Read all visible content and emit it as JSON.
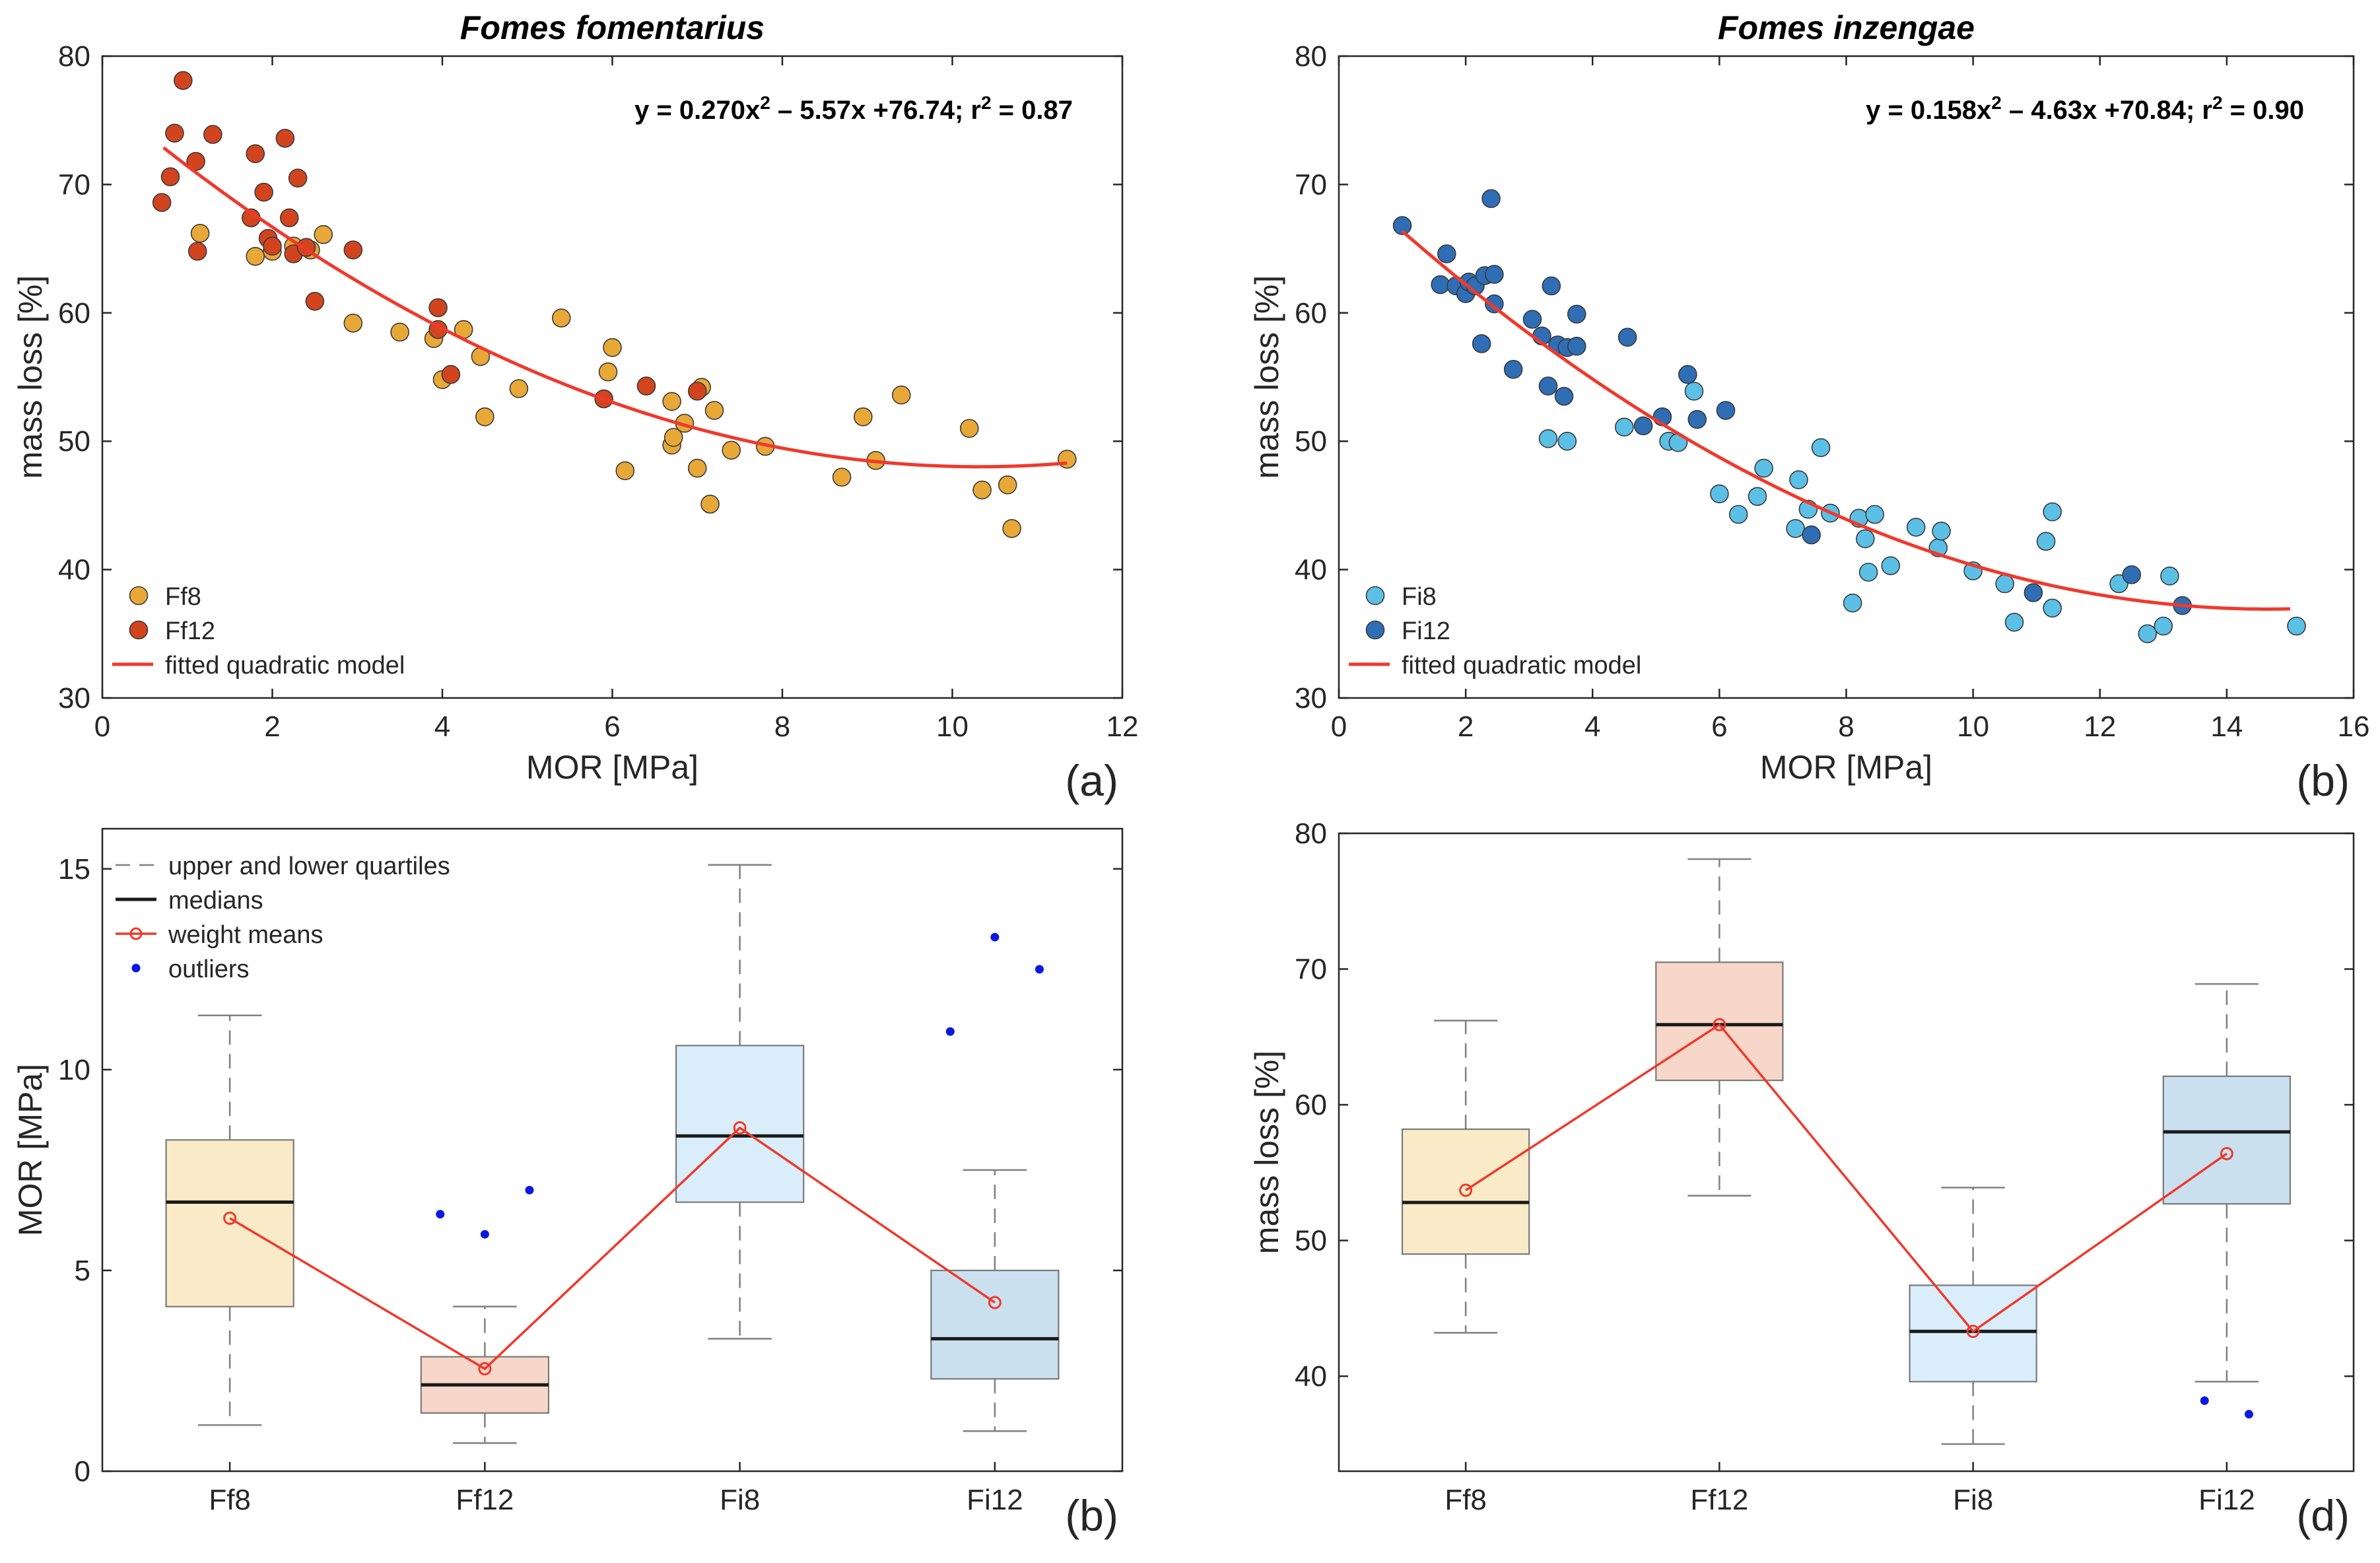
{
  "colors": {
    "ff8": "#E8A838",
    "ff12": "#D2441E",
    "fi8": "#5BBFE6",
    "fi12": "#2F6DB4",
    "fit": "#F0392C",
    "outlier": "#0A18E0",
    "box_ff8": "#FAEBC8",
    "box_ff12": "#F6D7C9",
    "box_fi8": "#D9EEFA",
    "box_fi12": "#CAE0EF",
    "axis": "#262626",
    "whisker": "#808080"
  },
  "chart_data": [
    {
      "id": "a",
      "type": "scatter",
      "title": "Fomes fomentarius",
      "panel_label": "(a)",
      "xlabel": "MOR [MPa]",
      "ylabel": "mass loss [%]",
      "xlim": [
        0,
        12
      ],
      "ylim": [
        30,
        80
      ],
      "xticks": [
        0,
        2,
        4,
        6,
        8,
        10,
        12
      ],
      "yticks": [
        30,
        40,
        50,
        60,
        70,
        80
      ],
      "equation": {
        "prefix": "y = 0.270x",
        "sup": "2",
        "mid": " – 5.57x +76.74;  r",
        "sup2": "2",
        "suffix": " = 0.87"
      },
      "fit": {
        "a": 0.27,
        "b": -5.57,
        "c": 76.74,
        "xrange": [
          0.72,
          11.35
        ],
        "label": "fitted quadratic model"
      },
      "series": [
        {
          "name": "Ff8",
          "color_key": "ff8",
          "points": [
            [
              1.15,
              66.2
            ],
            [
              1.8,
              64.4
            ],
            [
              2.0,
              64.8
            ],
            [
              2.25,
              65.2
            ],
            [
              2.45,
              64.9
            ],
            [
              2.6,
              66.1
            ],
            [
              2.95,
              59.2
            ],
            [
              3.5,
              58.5
            ],
            [
              3.9,
              58.0
            ],
            [
              4.0,
              54.8
            ],
            [
              4.25,
              58.7
            ],
            [
              4.45,
              56.6
            ],
            [
              4.5,
              51.9
            ],
            [
              4.9,
              54.1
            ],
            [
              5.4,
              59.6
            ],
            [
              6.0,
              57.3
            ],
            [
              5.95,
              55.4
            ],
            [
              6.15,
              47.7
            ],
            [
              6.7,
              53.1
            ],
            [
              6.7,
              49.7
            ],
            [
              6.72,
              50.3
            ],
            [
              6.85,
              51.4
            ],
            [
              7.0,
              47.9
            ],
            [
              7.05,
              54.2
            ],
            [
              7.15,
              45.1
            ],
            [
              7.2,
              52.4
            ],
            [
              7.4,
              49.3
            ],
            [
              7.8,
              49.6
            ],
            [
              8.7,
              47.2
            ],
            [
              8.95,
              51.9
            ],
            [
              9.1,
              48.5
            ],
            [
              9.4,
              53.6
            ],
            [
              10.2,
              51.0
            ],
            [
              10.35,
              46.2
            ],
            [
              10.65,
              46.6
            ],
            [
              10.7,
              43.2
            ],
            [
              11.35,
              48.6
            ]
          ]
        },
        {
          "name": "Ff12",
          "color_key": "ff12",
          "points": [
            [
              0.7,
              68.6
            ],
            [
              0.8,
              70.6
            ],
            [
              0.85,
              74.0
            ],
            [
              0.95,
              78.1
            ],
            [
              1.1,
              71.8
            ],
            [
              1.12,
              64.8
            ],
            [
              1.3,
              73.9
            ],
            [
              1.75,
              67.4
            ],
            [
              1.8,
              72.4
            ],
            [
              1.9,
              69.4
            ],
            [
              1.95,
              65.8
            ],
            [
              2.0,
              65.2
            ],
            [
              2.15,
              73.6
            ],
            [
              2.2,
              67.4
            ],
            [
              2.25,
              64.6
            ],
            [
              2.3,
              70.5
            ],
            [
              2.4,
              65.1
            ],
            [
              2.5,
              60.9
            ],
            [
              2.95,
              64.9
            ],
            [
              3.95,
              60.4
            ],
            [
              3.95,
              58.7
            ],
            [
              4.1,
              55.2
            ],
            [
              5.9,
              53.3
            ],
            [
              6.4,
              54.3
            ],
            [
              7.0,
              53.9
            ]
          ]
        }
      ]
    },
    {
      "id": "b_top",
      "type": "scatter",
      "title": "Fomes inzengae",
      "panel_label": "(b)",
      "xlabel": "MOR [MPa]",
      "ylabel": "mass loss [%]",
      "xlim": [
        0,
        16
      ],
      "ylim": [
        30,
        80
      ],
      "xticks": [
        0,
        2,
        4,
        6,
        8,
        10,
        12,
        14,
        16
      ],
      "yticks": [
        30,
        40,
        50,
        60,
        70,
        80
      ],
      "equation": {
        "prefix": "y = 0.158x",
        "sup": "2",
        "mid": " – 4.63x +70.84;  r",
        "sup2": "2",
        "suffix": " = 0.90"
      },
      "fit": {
        "a": 0.158,
        "b": -4.63,
        "c": 70.84,
        "xrange": [
          1.0,
          15.0
        ],
        "label": "fitted quadratic model"
      },
      "series": [
        {
          "name": "Fi8",
          "color_key": "fi8",
          "points": [
            [
              3.3,
              50.2
            ],
            [
              3.6,
              50.0
            ],
            [
              4.5,
              51.1
            ],
            [
              5.2,
              50.0
            ],
            [
              5.35,
              49.9
            ],
            [
              5.6,
              53.9
            ],
            [
              6.0,
              45.9
            ],
            [
              6.3,
              44.3
            ],
            [
              6.6,
              45.7
            ],
            [
              6.7,
              47.9
            ],
            [
              7.2,
              43.2
            ],
            [
              7.25,
              47.0
            ],
            [
              7.4,
              44.7
            ],
            [
              7.6,
              49.5
            ],
            [
              7.75,
              44.4
            ],
            [
              8.1,
              37.4
            ],
            [
              8.2,
              44.0
            ],
            [
              8.3,
              42.4
            ],
            [
              8.35,
              39.8
            ],
            [
              8.45,
              44.3
            ],
            [
              8.7,
              40.3
            ],
            [
              9.1,
              43.3
            ],
            [
              9.45,
              41.7
            ],
            [
              9.5,
              43.0
            ],
            [
              10.0,
              39.9
            ],
            [
              10.5,
              38.9
            ],
            [
              10.65,
              35.9
            ],
            [
              11.15,
              42.2
            ],
            [
              11.25,
              44.5
            ],
            [
              11.25,
              37.0
            ],
            [
              12.3,
              38.9
            ],
            [
              12.75,
              35.0
            ],
            [
              13.0,
              35.6
            ],
            [
              13.1,
              39.5
            ],
            [
              15.1,
              35.6
            ]
          ]
        },
        {
          "name": "Fi12",
          "color_key": "fi12",
          "points": [
            [
              1.0,
              66.8
            ],
            [
              1.6,
              62.2
            ],
            [
              1.7,
              64.6
            ],
            [
              1.85,
              62.1
            ],
            [
              2.0,
              61.5
            ],
            [
              2.05,
              62.4
            ],
            [
              2.15,
              62.1
            ],
            [
              2.25,
              57.6
            ],
            [
              2.3,
              62.9
            ],
            [
              2.4,
              68.9
            ],
            [
              2.45,
              60.7
            ],
            [
              2.45,
              63.0
            ],
            [
              2.75,
              55.6
            ],
            [
              3.05,
              59.5
            ],
            [
              3.2,
              58.2
            ],
            [
              3.3,
              54.3
            ],
            [
              3.35,
              62.1
            ],
            [
              3.45,
              57.5
            ],
            [
              3.55,
              53.5
            ],
            [
              3.6,
              57.3
            ],
            [
              3.75,
              59.9
            ],
            [
              3.75,
              57.4
            ],
            [
              4.55,
              58.1
            ],
            [
              4.8,
              51.2
            ],
            [
              5.1,
              51.9
            ],
            [
              5.5,
              55.2
            ],
            [
              5.65,
              51.7
            ],
            [
              6.1,
              52.4
            ],
            [
              7.45,
              42.7
            ],
            [
              10.95,
              38.2
            ],
            [
              12.5,
              39.6
            ],
            [
              13.3,
              37.2
            ]
          ]
        }
      ]
    },
    {
      "id": "b_bottom",
      "type": "box",
      "panel_label": "(b)",
      "ylabel": "MOR [MPa]",
      "categories": [
        "Ff8",
        "Ff12",
        "Fi8",
        "Fi12"
      ],
      "ylim": [
        0,
        16
      ],
      "yticks": [
        0,
        5,
        10,
        15
      ],
      "legend": [
        "upper and lower quartiles",
        "medians",
        "weight means",
        "outliers"
      ],
      "boxes": [
        {
          "name": "Ff8",
          "color_key": "box_ff8",
          "low": 1.15,
          "q1": 4.1,
          "median": 6.7,
          "q3": 8.25,
          "high": 11.35,
          "mean": 6.3,
          "outliers": []
        },
        {
          "name": "Ff12",
          "color_key": "box_ff12",
          "low": 0.7,
          "q1": 1.45,
          "median": 2.15,
          "q3": 2.85,
          "high": 4.1,
          "mean": 2.55,
          "outliers": [
            6.4,
            5.9,
            7.0
          ]
        },
        {
          "name": "Fi8",
          "color_key": "box_fi8",
          "low": 3.3,
          "q1": 6.7,
          "median": 8.35,
          "q3": 10.6,
          "high": 15.1,
          "mean": 8.55,
          "outliers": []
        },
        {
          "name": "Fi12",
          "color_key": "box_fi12",
          "low": 1.0,
          "q1": 2.3,
          "median": 3.3,
          "q3": 5.0,
          "high": 7.5,
          "mean": 4.2,
          "outliers": [
            10.95,
            13.3,
            12.5
          ]
        }
      ]
    },
    {
      "id": "d",
      "type": "box",
      "panel_label": "(d)",
      "ylabel": "mass loss [%]",
      "categories": [
        "Ff8",
        "Ff12",
        "Fi8",
        "Fi12"
      ],
      "ylim": [
        33,
        80
      ],
      "yticks": [
        40,
        50,
        60,
        70,
        80
      ],
      "boxes": [
        {
          "name": "Ff8",
          "color_key": "box_ff8",
          "low": 43.2,
          "q1": 49.0,
          "median": 52.8,
          "q3": 58.2,
          "high": 66.2,
          "mean": 53.7,
          "outliers": []
        },
        {
          "name": "Ff12",
          "color_key": "box_ff12",
          "low": 53.3,
          "q1": 61.8,
          "median": 65.9,
          "q3": 70.5,
          "high": 78.1,
          "mean": 65.9,
          "outliers": []
        },
        {
          "name": "Fi8",
          "color_key": "box_fi8",
          "low": 35.0,
          "q1": 39.6,
          "median": 43.3,
          "q3": 46.7,
          "high": 53.9,
          "mean": 43.3,
          "outliers": []
        },
        {
          "name": "Fi12",
          "color_key": "box_fi12",
          "low": 39.6,
          "q1": 52.7,
          "median": 58.0,
          "q3": 62.1,
          "high": 68.9,
          "mean": 56.4,
          "outliers": [
            38.2,
            37.2
          ]
        }
      ]
    }
  ]
}
